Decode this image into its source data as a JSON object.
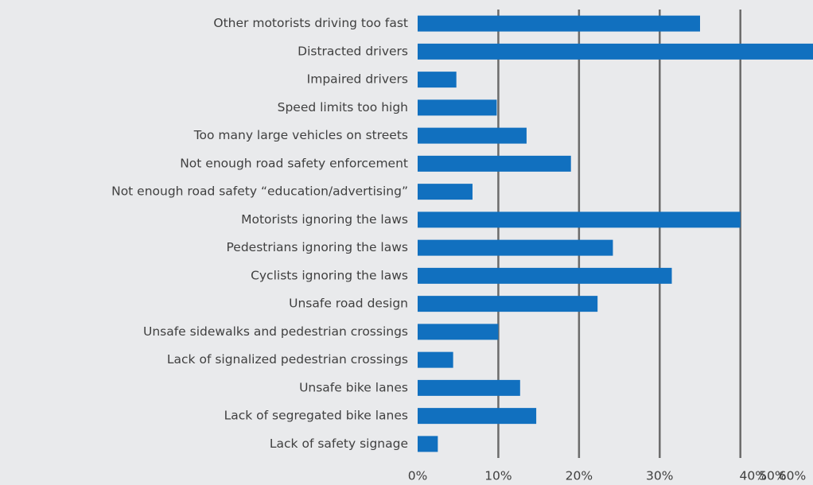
{
  "chart_data": {
    "type": "bar",
    "orientation": "horizontal",
    "categories": [
      "Other motorists driving too fast",
      "Distracted drivers",
      "Impaired drivers",
      "Speed limits too high",
      "Too many large vehicles on streets",
      "Not enough road safety enforcement",
      "Not enough road safety “education/advertising”",
      "Motorists ignoring the laws",
      "Pedestrians ignoring the laws",
      "Cyclists ignoring the laws",
      "Unsafe road design",
      "Unsafe sidewalks and pedestrian crossings",
      "Lack of signalized pedestrian crossings",
      "Unsafe bike lanes",
      "Lack of segregated bike lanes",
      "Lack of safety signage"
    ],
    "values": [
      35,
      49,
      4.8,
      9.8,
      13.5,
      19,
      6.8,
      40,
      24.2,
      31.5,
      22.3,
      10,
      4.4,
      12.7,
      14.7,
      2.5
    ],
    "color": "#1170bf",
    "xlim": [
      0,
      49
    ],
    "xticks": [
      {
        "value": 0,
        "label": "0%"
      },
      {
        "value": 10,
        "label": "10%"
      },
      {
        "value": 20,
        "label": "20%"
      },
      {
        "value": 30,
        "label": "30%"
      },
      {
        "value": 40,
        "label": "40%"
      },
      {
        "value": 50,
        "label": "50%"
      },
      {
        "value": 60,
        "label": "60%"
      }
    ],
    "grid": true
  }
}
